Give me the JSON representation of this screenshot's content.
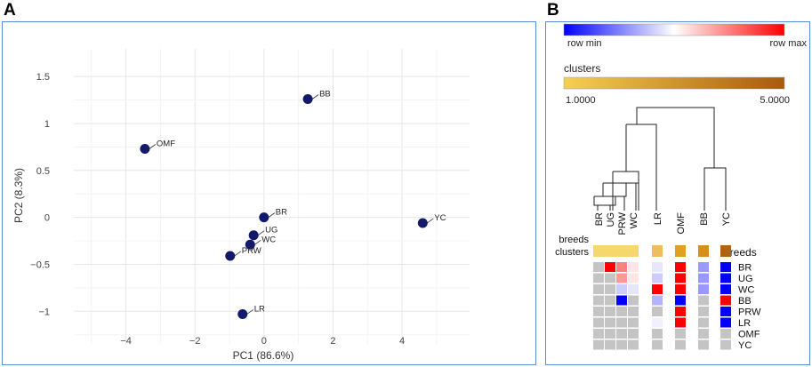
{
  "panel_a": {
    "letter": "A"
  },
  "panel_b": {
    "letter": "B"
  },
  "chart_data": [
    {
      "type": "scatter",
      "title": "",
      "xlabel": "PC1 (86.6%)",
      "ylabel": "PC2 (8.3%)",
      "xlim": [
        -5.2,
        5.7
      ],
      "ylim": [
        -1.3,
        1.7
      ],
      "xticks": [
        -4,
        -2,
        0,
        2,
        4
      ],
      "yticks": [
        -1,
        -0.5,
        0,
        0.5,
        1,
        1.5
      ],
      "xtick_labels": [
        "−4",
        "−2",
        "0",
        "2",
        "4"
      ],
      "ytick_labels": [
        "−1",
        "−0.5",
        "0",
        "0.5",
        "1",
        "1.5"
      ],
      "grid": true,
      "marker_color": "#131a6b",
      "points": [
        {
          "label": "BB",
          "x": 1.27,
          "y": 1.26
        },
        {
          "label": "OMF",
          "x": -3.45,
          "y": 0.73
        },
        {
          "label": "BR",
          "x": 0.0,
          "y": 0.0
        },
        {
          "label": "UG",
          "x": -0.3,
          "y": -0.19
        },
        {
          "label": "WC",
          "x": -0.4,
          "y": -0.29
        },
        {
          "label": "PRW",
          "x": -0.98,
          "y": -0.41
        },
        {
          "label": "YC",
          "x": 4.6,
          "y": -0.06
        },
        {
          "label": "LR",
          "x": -0.62,
          "y": -1.03
        }
      ]
    },
    {
      "type": "heatmap",
      "title": "",
      "color_scale": {
        "min_label": "row min",
        "max_label": "row max",
        "colors": [
          "#0000ff",
          "#ffffff",
          "#ff0000"
        ]
      },
      "cluster_scale": {
        "title": "clusters",
        "min_label": "1.0000",
        "max_label": "5.0000",
        "min": 1,
        "max": 5,
        "colors": [
          "#f5d050",
          "#a85a0c"
        ]
      },
      "annotation_labels": {
        "breeds": "breeds",
        "clusters": "clusters"
      },
      "row_header": "breeds",
      "columns": [
        "BR",
        "UG",
        "PRW",
        "WC",
        "LR",
        "OMF",
        "BB",
        "YC"
      ],
      "column_clusters": [
        1,
        1,
        1,
        1,
        2,
        3,
        3,
        5
      ],
      "column_cluster_colors": [
        "#f5d76e",
        "#f5d76e",
        "#f5d76e",
        "#f5d76e",
        "#eebd5e",
        "#e0a020",
        "#d58f1e",
        "#b06310"
      ],
      "rows": [
        "BR",
        "UG",
        "WC",
        "BB",
        "PRW",
        "LR",
        "OMF",
        "YC"
      ],
      "values": [
        [
          null,
          1.0,
          0.75,
          0.55,
          0.45,
          1.0,
          0.3,
          0.0
        ],
        [
          null,
          null,
          0.7,
          0.55,
          0.4,
          1.0,
          0.3,
          0.0
        ],
        [
          null,
          null,
          0.4,
          0.45,
          1.0,
          1.0,
          0.3,
          0.0
        ],
        [
          null,
          null,
          0.0,
          null,
          0.35,
          0.0,
          null,
          1.0
        ],
        [
          null,
          null,
          null,
          null,
          null,
          1.0,
          null,
          0.0
        ],
        [
          null,
          null,
          null,
          null,
          0.47,
          1.0,
          null,
          0.0
        ],
        [
          null,
          null,
          null,
          null,
          null,
          null,
          null,
          null
        ],
        [
          null,
          null,
          null,
          null,
          null,
          null,
          null,
          null
        ]
      ],
      "dendrogram": "hierarchical clustering of columns"
    }
  ]
}
